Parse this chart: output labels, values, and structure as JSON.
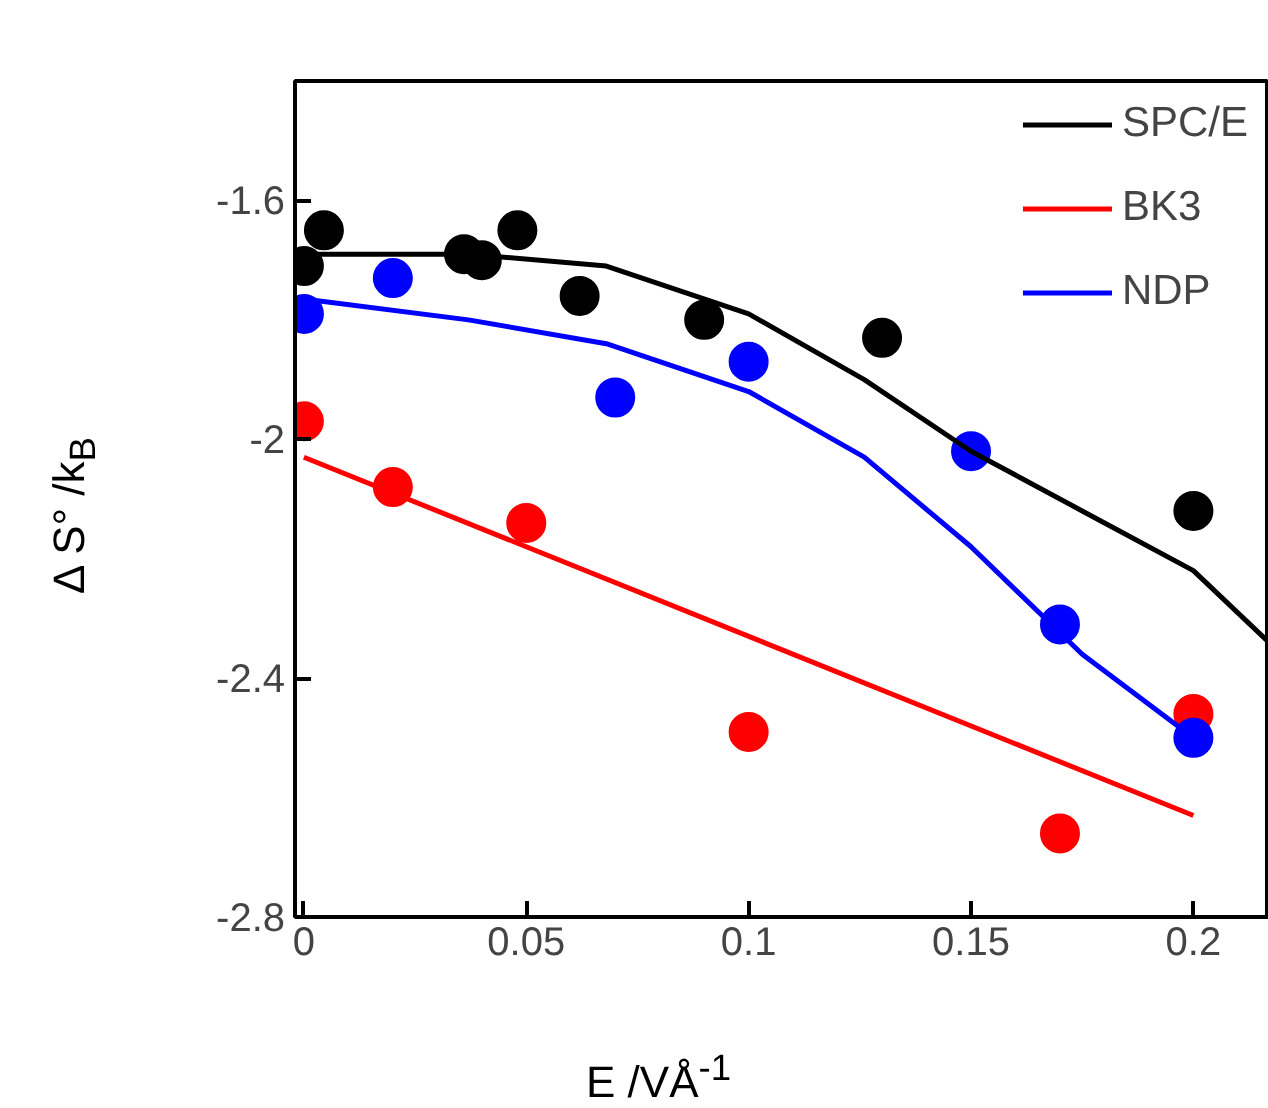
{
  "chart_data": {
    "type": "scatter",
    "xlabel": "E /VÅ$^{-1}$",
    "ylabel": "Δ S° /k$_{B}$",
    "xlim": [
      -0.002,
      0.217
    ],
    "ylim": [
      -2.8,
      -1.4
    ],
    "xticks": [
      0,
      0.05,
      0.1,
      0.15,
      0.2
    ],
    "yticks": [
      -2.8,
      -2.4,
      -2,
      -1.6
    ],
    "grid": false,
    "legend": "top right",
    "marker": "circle",
    "series": [
      {
        "color": "#000000",
        "x": [
          0,
          0.0045,
          0.036,
          0.04,
          0.048,
          0.062,
          0.09,
          0.13,
          0.2
        ],
        "values": [
          -1.71,
          -1.65,
          -1.69,
          -1.7,
          -1.65,
          -1.76,
          -1.8,
          -1.83,
          -2.12
        ]
      },
      {
        "color": "#ff0000",
        "x": [
          0,
          0.02,
          0.05,
          0.1,
          0.17,
          0.2
        ],
        "values": [
          -1.97,
          -2.08,
          -2.14,
          -2.49,
          -2.66,
          -2.46
        ]
      },
      {
        "color": "#0000ff",
        "x": [
          0,
          0.02,
          0.07,
          0.1,
          0.15,
          0.17,
          0.2
        ],
        "values": [
          -1.79,
          -1.73,
          -1.93,
          -1.87,
          -2.02,
          -2.31,
          -2.5
        ]
      },
      {
        "type": "line",
        "marker": "none",
        "name": "SPC/E",
        "color": "#000000",
        "x": [
          0,
          0.037,
          0.068,
          0.1,
          0.126,
          0.15,
          0.175,
          0.2,
          0.217
        ],
        "values": [
          -1.69,
          -1.69,
          -1.71,
          -1.79,
          -1.9,
          -2.02,
          -2.12,
          -2.22,
          -2.34
        ]
      },
      {
        "type": "line",
        "marker": "none",
        "name": "BK3",
        "color": "#ff0000",
        "x": [
          0,
          0.2
        ],
        "values": [
          -2.03,
          -2.63
        ]
      },
      {
        "type": "line",
        "marker": "none",
        "name": "NDP",
        "color": "#0000ff",
        "x": [
          0,
          0.037,
          0.068,
          0.1,
          0.126,
          0.15,
          0.175,
          0.2
        ],
        "values": [
          -1.765,
          -1.8,
          -1.84,
          -1.92,
          -2.03,
          -2.18,
          -2.36,
          -2.5
        ]
      }
    ]
  }
}
